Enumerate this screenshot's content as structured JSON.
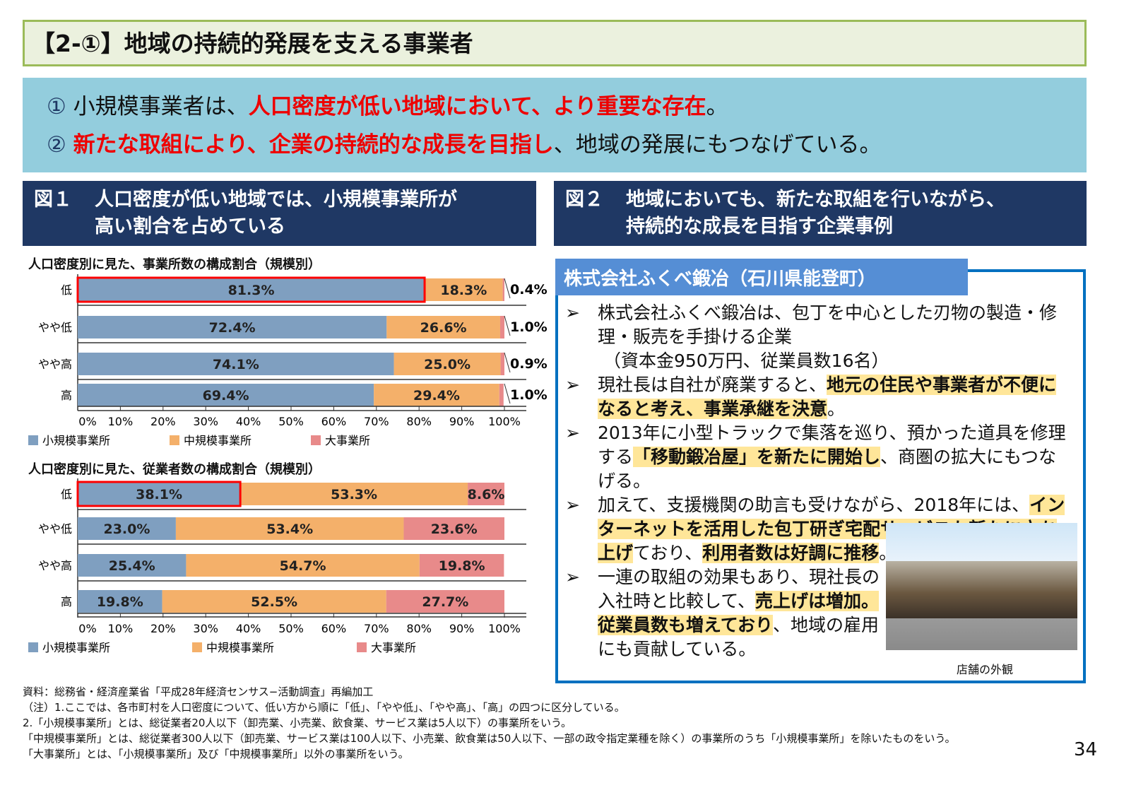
{
  "title": "【2-①】地域の持続的発展を支える事業者",
  "summary": {
    "line1": {
      "num": "①",
      "pre": "小規模事業者は、",
      "highlight": "人口密度が低い地域において、より重要な存在",
      "post": "。"
    },
    "line2": {
      "num": "②",
      "pre": "",
      "highlight": "新たな取組により、企業の持続的な成長を目指し",
      "post": "、地域の発展にもつなげている。"
    }
  },
  "fig1": {
    "num": "図１",
    "title_line1": "人口密度が低い地域では、小規模事業所が",
    "title_line2": "高い割合を占めている"
  },
  "fig2": {
    "num": "図２",
    "title_line1": "地域においても、新たな取組を行いながら、",
    "title_line2": "持続的な成長を目指す企業事例"
  },
  "chart_data": [
    {
      "type": "bar",
      "stacked": true,
      "orientation": "horizontal",
      "title": "人口密度別に見た、事業所数の構成割合（規模別）",
      "categories": [
        "低",
        "やや低",
        "やや高",
        "高"
      ],
      "xlim": [
        0,
        100
      ],
      "ticks": [
        "0%",
        "10%",
        "20%",
        "30%",
        "40%",
        "50%",
        "60%",
        "70%",
        "80%",
        "90%",
        "100%"
      ],
      "series": [
        {
          "name": "小規模事業所",
          "values": [
            81.3,
            72.4,
            74.1,
            69.4
          ],
          "color": "#7f9fc0"
        },
        {
          "name": "中規模事業所",
          "values": [
            18.3,
            26.6,
            25.0,
            29.4
          ],
          "color": "#f4b06a"
        },
        {
          "name": "大事業所",
          "values": [
            0.4,
            1.0,
            0.9,
            1.0
          ],
          "color": "#e88a8a"
        }
      ],
      "labels": [
        [
          "81.3%",
          "18.3%",
          "0.4%"
        ],
        [
          "72.4%",
          "26.6%",
          "1.0%"
        ],
        [
          "74.1%",
          "25.0%",
          "0.9%"
        ],
        [
          "69.4%",
          "29.4%",
          "1.0%"
        ]
      ],
      "highlight": {
        "category": "低",
        "series": "小規模事業所",
        "color": "#ff0000"
      },
      "legend": "bottom"
    },
    {
      "type": "bar",
      "stacked": true,
      "orientation": "horizontal",
      "title": "人口密度別に見た、従業者数の構成割合（規模別）",
      "categories": [
        "低",
        "やや低",
        "やや高",
        "高"
      ],
      "xlim": [
        0,
        100
      ],
      "ticks": [
        "0%",
        "10%",
        "20%",
        "30%",
        "40%",
        "50%",
        "60%",
        "70%",
        "80%",
        "90%",
        "100%"
      ],
      "series": [
        {
          "name": "小規模事業所",
          "values": [
            38.1,
            23.0,
            25.4,
            19.8
          ],
          "color": "#7f9fc0"
        },
        {
          "name": "中規模事業所",
          "values": [
            53.3,
            53.4,
            54.7,
            52.5
          ],
          "color": "#f4b06a"
        },
        {
          "name": "大事業所",
          "values": [
            8.6,
            23.6,
            19.8,
            27.7
          ],
          "color": "#e88a8a"
        }
      ],
      "labels": [
        [
          "38.1%",
          "53.3%",
          "8.6%"
        ],
        [
          "23.0%",
          "53.4%",
          "23.6%"
        ],
        [
          "25.4%",
          "54.7%",
          "19.8%"
        ],
        [
          "19.8%",
          "52.5%",
          "27.7%"
        ]
      ],
      "highlight": {
        "category": "低",
        "series": "小規模事業所",
        "color": "#ff0000"
      },
      "legend": "bottom"
    }
  ],
  "case": {
    "title": "株式会社ふくべ鍛冶（石川県能登町）",
    "marker": "➢",
    "b1": "株式会社ふくべ鍛冶は、包丁を中心とした刃物の製造・修理・販売を手掛ける企業",
    "b1_sub": "（資本金950万円、従業員数16名）",
    "b2_pre": "現社長は自社が廃業すると、",
    "b2_hl": "地元の住民や事業者が不便になると考え、事業承継を決意",
    "b2_post": "。",
    "b3_pre": "2013年に小型トラックで集落を巡り、預かった道具を修理する",
    "b3_hl": "「移動鍛冶屋」を新たに開始し",
    "b3_post": "、商圏の拡大にもつなげる。",
    "b4_pre": "加えて、支援機関の助言も受けながら、2018年には、",
    "b4_hl": "インターネットを活用した包丁研ぎ宅配サービスも新たに立ち上げ",
    "b4_mid": "ており、",
    "b4_hl2": "利用者数は好調に推移",
    "b4_post": "。",
    "b5_pre": "一連の取組の効果もあり、現社長の入社時と比較して、",
    "b5_hl": "売上げは増加。従業員数も増えており",
    "b5_post": "、地域の雇用にも貢献している。",
    "photo_caption": "店舗の外観"
  },
  "footnotes": [
    "資料：総務省・経済産業省「平成28年経済センサス−活動調査」再編加工",
    "（注）1.ここでは、各市町村を人口密度について、低い方から順に「低」、「やや低」、「やや高」、「高」の四つに区分している。",
    "2.「小規模事業所」とは、総従業者20人以下（卸売業、小売業、飲食業、サービス業は5人以下）の事業所をいう。",
    "「中規模事業所」とは、総従業者300人以下（卸売業、サービス業は100人以下、小売業、飲食業は50人以下、一部の政令指定業種を除く）の事業所のうち「小規模事業所」を除いたものをいう。",
    "「大事業所」とは、「小規模事業所」及び「中規模事業所」以外の事業所をいう。"
  ],
  "page_number": "34"
}
